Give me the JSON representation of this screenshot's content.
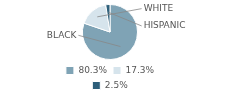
{
  "chart_data": {
    "type": "pie",
    "categories": [
      "80.3%",
      "17.3%",
      "2.5%"
    ],
    "values": [
      80.3,
      17.3,
      2.5
    ],
    "colors": [
      "#7fa3b5",
      "#d6e4ec",
      "#2d5f7a"
    ],
    "annotations": [
      "BLACK",
      "WHITE",
      "HISPANIC"
    ],
    "legend": "bottom"
  }
}
